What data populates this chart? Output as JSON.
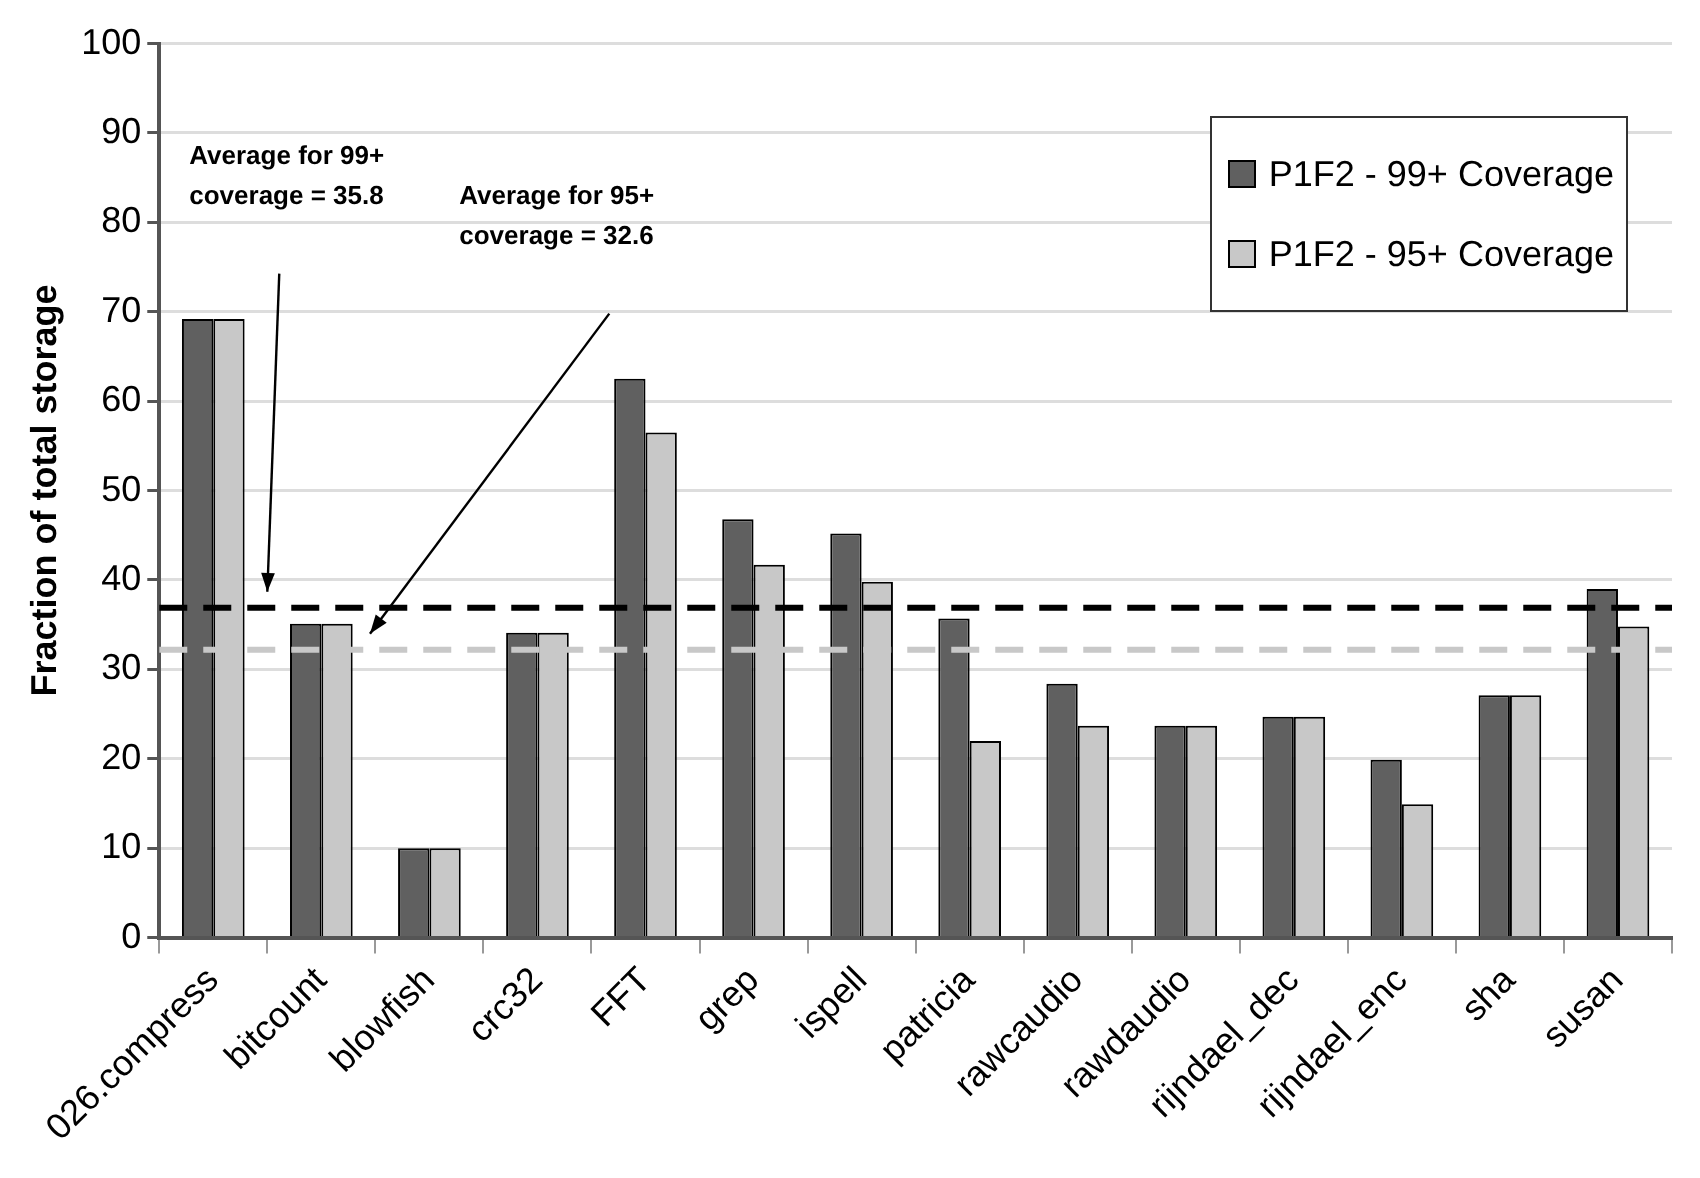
{
  "chart_data": {
    "type": "bar",
    "ylabel": "Fraction of total storage",
    "categories": [
      "026.compress",
      "bitcount",
      "blowfish",
      "crc32",
      "FFT",
      "grep",
      "ispell",
      "patricia",
      "rawcaudio",
      "rawdaudio",
      "rijndael_dec",
      "rijndael_enc",
      "sha",
      "susan"
    ],
    "series": [
      {
        "name": "P1F2 - 99+ Coverage",
        "color": "#606060",
        "values": [
          69.2,
          35.1,
          10.0,
          34.1,
          62.5,
          46.8,
          45.2,
          35.7,
          28.4,
          23.7,
          24.7,
          19.9,
          27.1,
          39.0
        ]
      },
      {
        "name": "P1F2 - 95+ Coverage",
        "color": "#c8c8c8",
        "values": [
          69.2,
          35.1,
          10.0,
          34.1,
          56.5,
          41.7,
          39.8,
          22.0,
          23.7,
          23.7,
          24.7,
          14.9,
          27.1,
          34.8
        ]
      }
    ],
    "ylim": [
      0,
      100
    ],
    "yticks": [
      0,
      10,
      20,
      30,
      40,
      50,
      60,
      70,
      80,
      90,
      100
    ],
    "grid": "y",
    "legend": "top right",
    "ref_lines": [
      {
        "axis": "y",
        "value": 36.9,
        "color": "#000000",
        "line_style": "dashed"
      },
      {
        "axis": "y",
        "value": 32.2,
        "color": "#c8c8c8",
        "line_style": "dashed"
      }
    ],
    "annotations": [
      "Average for 99+ coverage = 35.8",
      "Average for 95+ coverage = 32.6"
    ]
  }
}
